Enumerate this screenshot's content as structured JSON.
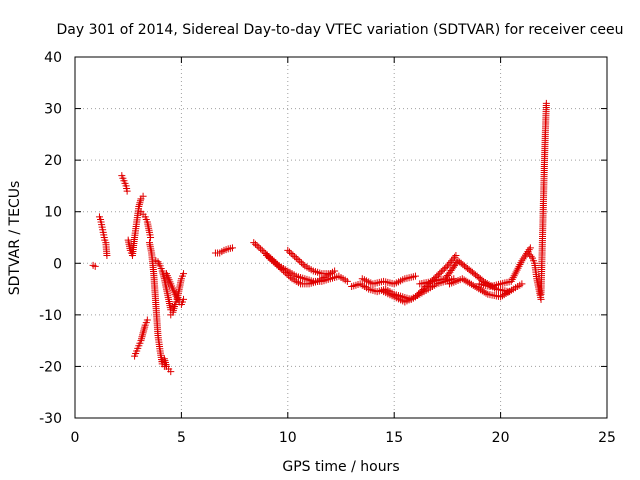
{
  "chart_data": {
    "type": "scatter",
    "title": "Day 301 of 2014, Sidereal Day-to-day VTEC variation (SDTVAR) for receiver ceeu",
    "xlabel": "GPS time / hours",
    "ylabel": "SDTVAR / TECUs",
    "xlim": [
      0,
      25
    ],
    "ylim": [
      -30,
      40
    ],
    "xticks": [
      0,
      5,
      10,
      15,
      20,
      25
    ],
    "yticks": [
      -30,
      -20,
      -10,
      0,
      10,
      20,
      30,
      40
    ],
    "grid": true,
    "marker": "plus",
    "color": "#e00000",
    "segments": [
      {
        "x": [
          0.85,
          0.95
        ],
        "y": [
          -0.4,
          -0.6
        ]
      },
      {
        "x": [
          1.15,
          1.2,
          1.25,
          1.3,
          1.35,
          1.4,
          1.45,
          1.5
        ],
        "y": [
          9.0,
          8.5,
          7.5,
          6.5,
          5.5,
          4.5,
          4.0,
          1.5
        ]
      },
      {
        "x": [
          2.2,
          2.3,
          2.4,
          2.45
        ],
        "y": [
          17.0,
          16.0,
          15.0,
          14.0
        ]
      },
      {
        "x": [
          2.5,
          2.6,
          2.7,
          2.8,
          2.9,
          3.0,
          3.1,
          3.2
        ],
        "y": [
          4.5,
          2.5,
          1.5,
          5.0,
          8.0,
          11.0,
          12.5,
          13.0
        ]
      },
      {
        "x": [
          2.8,
          2.9,
          3.0,
          3.1,
          3.2,
          3.3,
          3.4
        ],
        "y": [
          -18.0,
          -17.0,
          -16.0,
          -15.0,
          -13.5,
          -12.0,
          -11.0
        ]
      },
      {
        "x": [
          3.1,
          3.2,
          3.3,
          3.4,
          3.5,
          3.55
        ],
        "y": [
          10.0,
          9.5,
          9.0,
          8.0,
          6.0,
          5.0
        ]
      },
      {
        "x": [
          3.5,
          3.6,
          3.7,
          3.8,
          3.9,
          4.0,
          4.1,
          4.2
        ],
        "y": [
          4.0,
          2.0,
          -2.0,
          -8.0,
          -14.0,
          -17.0,
          -19.5,
          -20.0
        ]
      },
      {
        "x": [
          3.8,
          3.9,
          4.0,
          4.1,
          4.2,
          4.3,
          4.4,
          4.5
        ],
        "y": [
          0.5,
          0.3,
          -0.5,
          -1.5,
          -3.0,
          -5.0,
          -7.0,
          -9.0
        ]
      },
      {
        "x": [
          4.1,
          4.2,
          4.3,
          4.4,
          4.5
        ],
        "y": [
          -19.0,
          -18.5,
          -20.0,
          -20.5,
          -21.0
        ]
      },
      {
        "x": [
          4.5,
          4.6,
          4.7,
          4.8,
          4.9,
          5.0,
          5.1
        ],
        "y": [
          -10.0,
          -9.5,
          -8.0,
          -7.0,
          -5.0,
          -3.0,
          -2.0
        ]
      },
      {
        "x": [
          4.3,
          4.5,
          4.7,
          4.9,
          5.0,
          5.1
        ],
        "y": [
          -2.0,
          -4.0,
          -6.0,
          -7.5,
          -8.0,
          -7.0
        ]
      },
      {
        "x": [
          6.6,
          6.8,
          7.0,
          7.2,
          7.4
        ],
        "y": [
          2.0,
          2.0,
          2.5,
          2.8,
          3.0
        ]
      },
      {
        "x": [
          8.4,
          8.8,
          9.2,
          9.6,
          10.0,
          10.4,
          10.8,
          11.2,
          11.6,
          12.0,
          12.4,
          12.8
        ],
        "y": [
          4.0,
          2.5,
          1.0,
          -0.5,
          -1.5,
          -2.5,
          -3.0,
          -3.5,
          -3.5,
          -3.0,
          -2.5,
          -3.5
        ]
      },
      {
        "x": [
          9.0,
          9.4,
          9.8,
          10.2,
          10.6,
          11.0,
          11.4,
          11.8,
          12.2
        ],
        "y": [
          1.5,
          0.0,
          -1.5,
          -3.0,
          -4.0,
          -4.0,
          -3.5,
          -2.5,
          -1.5
        ]
      },
      {
        "x": [
          10.0,
          10.4,
          10.8,
          11.2,
          11.6,
          12.0
        ],
        "y": [
          2.5,
          1.0,
          -0.5,
          -1.5,
          -2.0,
          -2.0
        ]
      },
      {
        "x": [
          13.0,
          13.4,
          13.8,
          14.2,
          14.6,
          15.0,
          15.4,
          15.8,
          16.2,
          16.6,
          17.0,
          17.4,
          17.8
        ],
        "y": [
          -4.5,
          -4.0,
          -5.0,
          -5.5,
          -5.0,
          -6.0,
          -6.5,
          -7.0,
          -6.0,
          -5.0,
          -4.0,
          -3.5,
          -3.0
        ]
      },
      {
        "x": [
          13.5,
          14.0,
          14.5,
          15.0,
          15.5,
          16.0
        ],
        "y": [
          -3.0,
          -4.0,
          -3.5,
          -4.0,
          -3.0,
          -2.5
        ]
      },
      {
        "x": [
          14.5,
          15.0,
          15.5,
          16.0,
          16.5,
          17.0,
          17.5,
          17.9
        ],
        "y": [
          -5.5,
          -6.5,
          -7.5,
          -6.5,
          -4.5,
          -2.5,
          -0.5,
          1.5
        ]
      },
      {
        "x": [
          16.2,
          16.8,
          17.4,
          18.0,
          18.6,
          19.2,
          19.8,
          20.4
        ],
        "y": [
          -4.0,
          -3.5,
          -3.0,
          0.5,
          -1.5,
          -3.5,
          -5.0,
          -5.5
        ]
      },
      {
        "x": [
          17.6,
          18.2,
          18.8,
          19.4,
          20.0,
          20.6,
          21.0
        ],
        "y": [
          -4.0,
          -3.0,
          -4.5,
          -6.0,
          -6.5,
          -5.0,
          -4.0
        ]
      },
      {
        "x": [
          19.0,
          19.5,
          20.0,
          20.5,
          21.0,
          21.4
        ],
        "y": [
          -4.0,
          -4.5,
          -4.0,
          -3.5,
          0.5,
          3.0
        ]
      },
      {
        "x": [
          21.3,
          21.5,
          21.6,
          21.7,
          21.8,
          21.9
        ],
        "y": [
          2.0,
          1.0,
          0.0,
          -3.0,
          -5.0,
          -7.0
        ]
      },
      {
        "x": [
          21.9,
          21.95,
          22.0,
          22.05,
          22.1,
          22.15
        ],
        "y": [
          -6.0,
          2.0,
          10.0,
          18.0,
          25.0,
          31.0
        ]
      }
    ]
  }
}
